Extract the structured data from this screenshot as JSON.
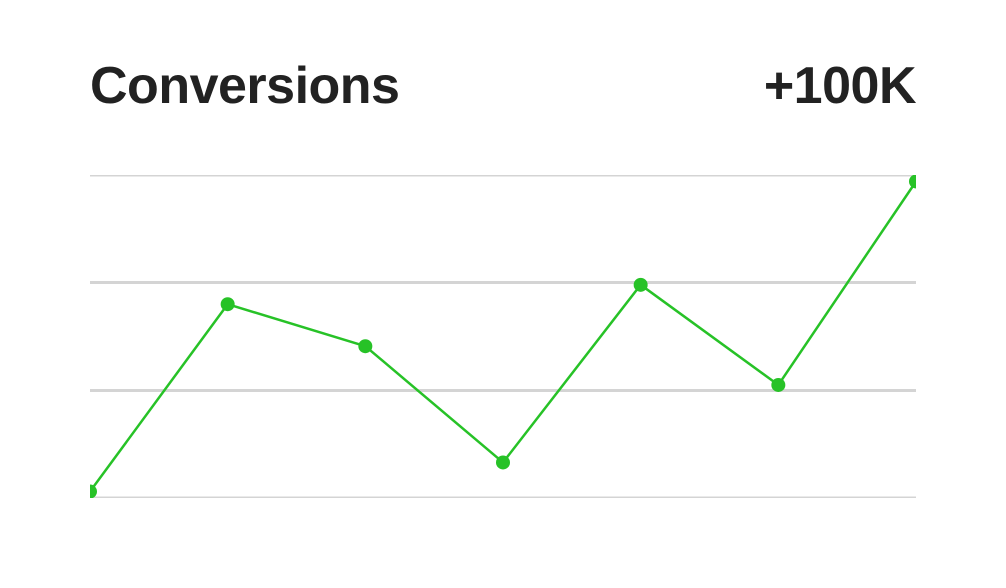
{
  "header": {
    "title": "Conversions",
    "value": "+100K",
    "title_fontsize": 52,
    "value_fontsize": 52,
    "title_weight": 700,
    "value_weight": 700,
    "text_color": "#222222"
  },
  "chart": {
    "type": "line",
    "background_color": "#ffffff",
    "grid": {
      "color": "#d4d4d4",
      "stroke_width": 3,
      "lines_y": [
        0,
        33.3,
        66.7,
        100
      ]
    },
    "ylim": [
      0,
      100
    ],
    "xlim": [
      0,
      6
    ],
    "series": {
      "line_color": "#27c227",
      "line_width": 2.5,
      "marker_color": "#27c227",
      "marker_radius": 7,
      "points": [
        {
          "x": 0,
          "y": 2
        },
        {
          "x": 1,
          "y": 60
        },
        {
          "x": 2,
          "y": 47
        },
        {
          "x": 3,
          "y": 11
        },
        {
          "x": 4,
          "y": 66
        },
        {
          "x": 5,
          "y": 35
        },
        {
          "x": 6,
          "y": 98
        }
      ]
    }
  }
}
